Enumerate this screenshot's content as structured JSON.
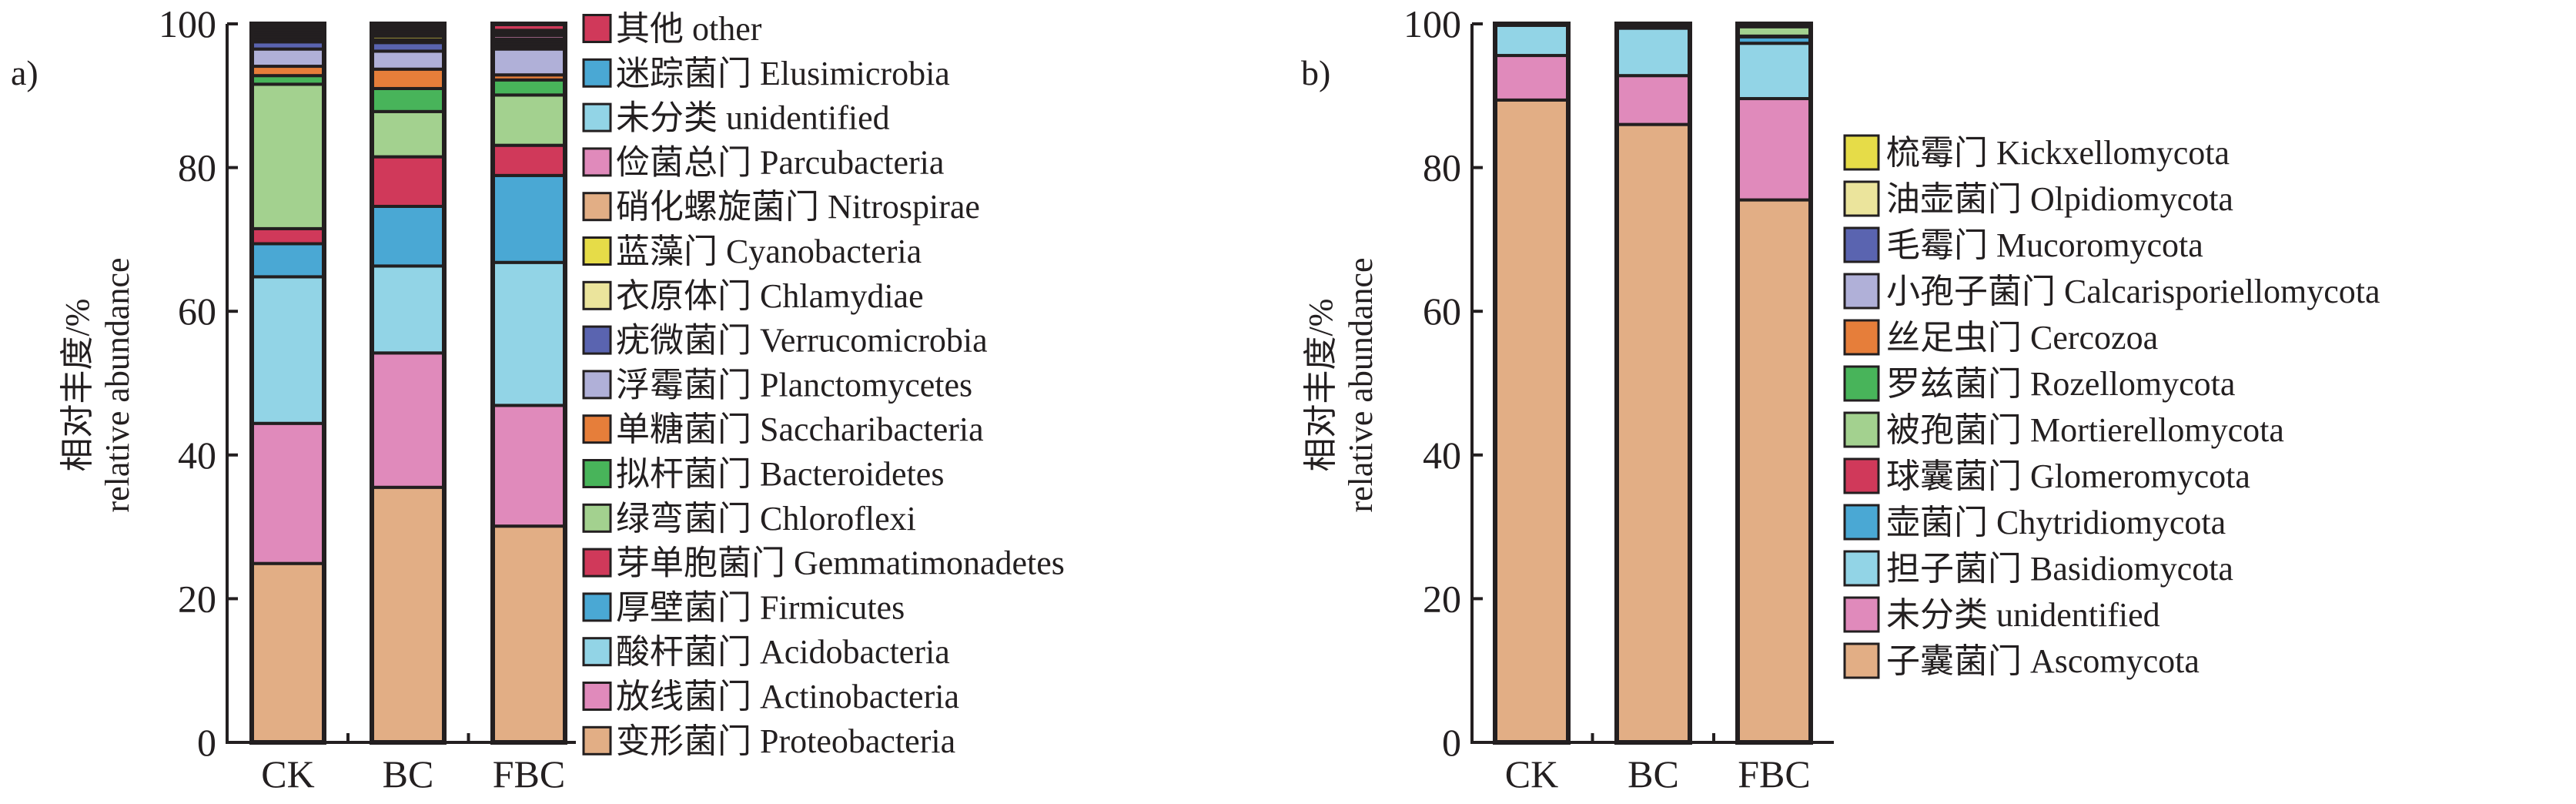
{
  "chart_data": [
    {
      "type": "bar",
      "stacked": true,
      "panel_label": "a)",
      "ylabel_cn": "相对丰度/%",
      "ylabel_en": "relative abundance",
      "ylim": [
        0,
        100
      ],
      "yticks": [
        "0",
        "20",
        "40",
        "60",
        "80",
        "100"
      ],
      "categories": [
        "CK",
        "BC",
        "FBC"
      ],
      "legend_position": "right",
      "series": [
        {
          "name": "变形菌门 Proteobacteria",
          "color": "#e2ae85",
          "values": [
            24.9,
            35.5,
            30.1
          ]
        },
        {
          "name": "放线菌门 Actinobacteria",
          "color": "#e08abb",
          "values": [
            19.5,
            18.7,
            16.8
          ]
        },
        {
          "name": "酸杆菌门 Acidobacteria",
          "color": "#92d4e6",
          "values": [
            20.4,
            12.1,
            19.9
          ]
        },
        {
          "name": "厚壁菌门 Firmicutes",
          "color": "#4aa8d4",
          "values": [
            4.6,
            8.3,
            12.1
          ]
        },
        {
          "name": "芽单胞菌门 Gemmatimonadetes",
          "color": "#d0395a",
          "values": [
            2.1,
            6.9,
            4.2
          ]
        },
        {
          "name": "绿弯菌门 Chloroflexi",
          "color": "#a3d18f",
          "values": [
            20.1,
            6.3,
            7.0
          ]
        },
        {
          "name": "拟杆菌门 Bacteroidetes",
          "color": "#48b45a",
          "values": [
            1.2,
            3.2,
            2.1
          ]
        },
        {
          "name": "单糖菌门 Saccharibacteria",
          "color": "#e67e3a",
          "values": [
            1.3,
            2.7,
            0.7
          ]
        },
        {
          "name": "浮霉菌门 Planctomycetes",
          "color": "#b0b0d8",
          "values": [
            2.4,
            2.5,
            3.6
          ]
        },
        {
          "name": "疣微菌门 Verrucomicrobia",
          "color": "#5a64b0",
          "values": [
            1.0,
            1.2,
            0.3
          ]
        },
        {
          "name": "衣原体门 Chlamydiae",
          "color": "#ebe49c",
          "values": [
            0.3,
            0.4,
            0.4
          ]
        },
        {
          "name": "蓝藻门 Cyanobacteria",
          "color": "#e6dc48",
          "values": [
            0.3,
            0.5,
            0.4
          ]
        },
        {
          "name": "硝化螺旋菌门 Nitrospirae",
          "color": "#e2ae85",
          "values": [
            0.4,
            0.4,
            0.3
          ]
        },
        {
          "name": "俭菌总门 Parcubacteria",
          "color": "#e08abb",
          "values": [
            0.4,
            0.3,
            0.5
          ]
        },
        {
          "name": "未分类 unidentified",
          "color": "#92d4e6",
          "values": [
            0.3,
            0.3,
            0.4
          ]
        },
        {
          "name": "迷踪菌门 Elusimicrobia",
          "color": "#4aa8d4",
          "values": [
            0.4,
            0.4,
            0.3
          ]
        },
        {
          "name": "其他 other",
          "color": "#d0395a",
          "values": [
            0.4,
            0.3,
            0.9
          ]
        }
      ]
    },
    {
      "type": "bar",
      "stacked": true,
      "panel_label": "b)",
      "ylabel_cn": "相对丰度/%",
      "ylabel_en": "relative abundance",
      "ylim": [
        0,
        100
      ],
      "yticks": [
        "0",
        "20",
        "40",
        "60",
        "80",
        "100"
      ],
      "categories": [
        "CK",
        "BC",
        "FBC"
      ],
      "legend_position": "right",
      "series": [
        {
          "name": "子囊菌门 Ascomycota",
          "color": "#e2ae85",
          "values": [
            89.4,
            86.0,
            75.5
          ]
        },
        {
          "name": "未分类 unidentified",
          "color": "#e08abb",
          "values": [
            6.2,
            6.8,
            14.1
          ]
        },
        {
          "name": "担子菌门 Basidiomycota",
          "color": "#92d4e6",
          "values": [
            4.2,
            6.6,
            7.7
          ]
        },
        {
          "name": "壶菌门 Chytridiomycota",
          "color": "#4aa8d4",
          "values": [
            0.05,
            0.1,
            0.9
          ]
        },
        {
          "name": "球囊菌门 Glomeromycota",
          "color": "#d0395a",
          "values": [
            0.05,
            0.1,
            0.1
          ]
        },
        {
          "name": "被孢菌门 Mortierellomycota",
          "color": "#a3d18f",
          "values": [
            0.05,
            0.1,
            1.3
          ]
        },
        {
          "name": "罗兹菌门 Rozellomycota",
          "color": "#48b45a",
          "values": [
            0.02,
            0.1,
            0.1
          ]
        },
        {
          "name": "丝足虫门 Cercozoa",
          "color": "#e67e3a",
          "values": [
            0.01,
            0.1,
            0.1
          ]
        },
        {
          "name": "小孢子菌门 Calcarisporiellomycota",
          "color": "#b0b0d8",
          "values": [
            0.01,
            0.05,
            0.1
          ]
        },
        {
          "name": "毛霉门 Mucoromycota",
          "color": "#5a64b0",
          "values": [
            0.01,
            0.05,
            0.05
          ]
        },
        {
          "name": "油壶菌门 Olpidiomycota",
          "color": "#ebe49c",
          "values": [
            0.0,
            0.0,
            0.05
          ]
        },
        {
          "name": "梳霉门 Kickxellomycota",
          "color": "#e6dc48",
          "values": [
            0.0,
            0.0,
            0.0
          ]
        }
      ]
    }
  ]
}
